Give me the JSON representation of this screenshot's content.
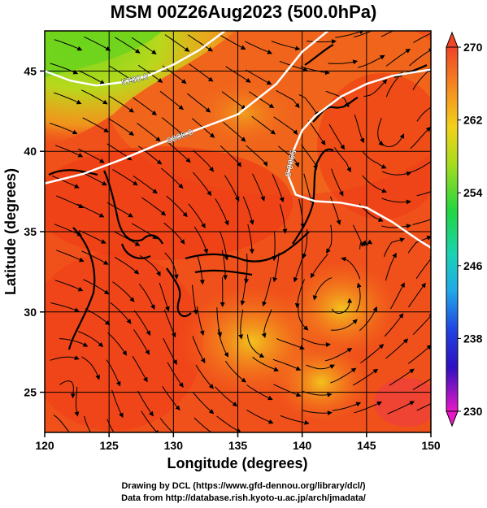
{
  "title": "MSM 00Z26Aug2023 (500.0hPa)",
  "x_axis": {
    "label": "Longitude (degrees)",
    "ticks": [
      "120",
      "125",
      "130",
      "135",
      "140",
      "145",
      "150"
    ],
    "range": [
      120,
      150
    ]
  },
  "y_axis": {
    "label": "Latitude  (degrees)",
    "ticks": [
      "25",
      "30",
      "35",
      "40",
      "45"
    ],
    "range": [
      22.5,
      47.5
    ]
  },
  "colorbar": {
    "min": 230,
    "max": 270,
    "labels": [
      "270",
      "262",
      "254",
      "246",
      "238",
      "230"
    ],
    "label_values": [
      270,
      262,
      254,
      246,
      238,
      230
    ]
  },
  "contours": [
    {
      "label": "5700.0",
      "approx_path_lonlat": [
        [
          120,
          45
        ],
        [
          122,
          44.4
        ],
        [
          124,
          44.1
        ],
        [
          126,
          44.3
        ],
        [
          128,
          44.7
        ],
        [
          130,
          45.4
        ],
        [
          132,
          46.3
        ],
        [
          134,
          47.5
        ]
      ]
    },
    {
      "label": "5800.0",
      "approx_path_lonlat": [
        [
          120,
          38
        ],
        [
          123,
          38.6
        ],
        [
          126,
          39.5
        ],
        [
          129,
          40.5
        ],
        [
          132,
          41.4
        ],
        [
          135,
          42.3
        ],
        [
          138,
          44.2
        ],
        [
          140,
          46.2
        ],
        [
          142,
          47.5
        ]
      ]
    },
    {
      "label": "5900.0",
      "approx_path_lonlat": [
        [
          150,
          45.1
        ],
        [
          147,
          44.7
        ],
        [
          145,
          44.2
        ],
        [
          143,
          43.4
        ],
        [
          141,
          42.2
        ],
        [
          140,
          41.3
        ],
        [
          139.3,
          40
        ],
        [
          138.9,
          38.5
        ],
        [
          139.5,
          37.3
        ],
        [
          141,
          36.9
        ],
        [
          143,
          36.8
        ],
        [
          145,
          36.5
        ],
        [
          147,
          35.6
        ],
        [
          149,
          34.5
        ],
        [
          150,
          34
        ]
      ]
    }
  ],
  "credits": {
    "line1": "Drawing by DCL (https://www.gfd-dennou.org/library/dcl/)",
    "line2": "Data from http://database.rish.kyoto-u.ac.jp/arch/jmadata/"
  },
  "colors": {
    "field_warm": "#f03a15",
    "field_orange": "#f5701e",
    "field_yellow": "#f2b81f",
    "field_green": "#6ed61d",
    "contour": "#ffffff",
    "streamline": "#000000"
  }
}
